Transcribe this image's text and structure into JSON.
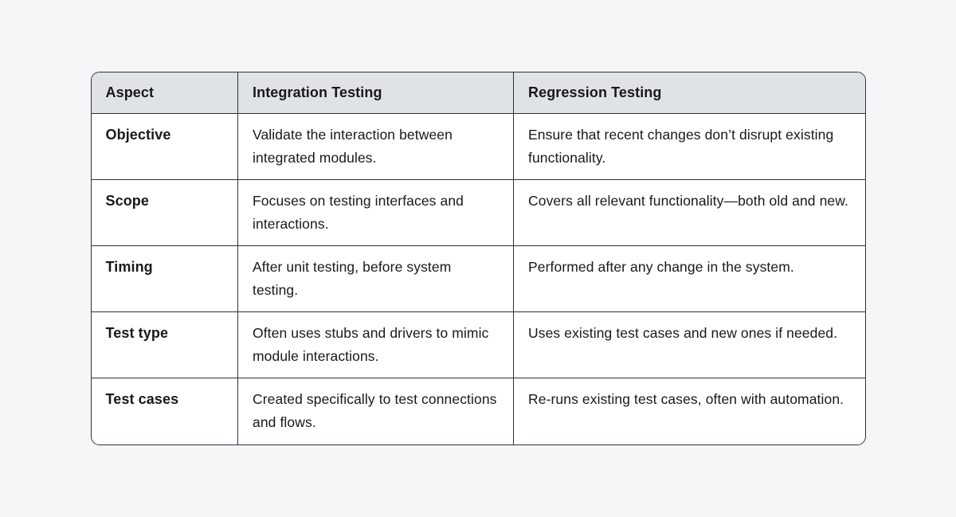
{
  "table": {
    "columns": [
      {
        "label": "Aspect"
      },
      {
        "label": "Integration Testing"
      },
      {
        "label": "Regression Testing"
      }
    ],
    "rows": [
      {
        "aspect": "Objective",
        "integration": "Validate the interaction between integrated modules.",
        "regression": "Ensure that recent changes don’t disrupt existing functionality."
      },
      {
        "aspect": "Scope",
        "integration": "Focuses on testing interfaces and interactions.",
        "regression": "Covers all relevant functionality—both old and new."
      },
      {
        "aspect": "Timing",
        "integration": "After unit testing, before system testing.",
        "regression": "Performed after any change in the system."
      },
      {
        "aspect": "Test type",
        "integration": "Often uses stubs and drivers to mimic module interactions.",
        "regression": "Uses existing test cases and new ones if needed."
      },
      {
        "aspect": "Test cases",
        "integration": "Created specifically to test connections and flows.",
        "regression": "Re-runs existing test cases, often with automation."
      }
    ]
  },
  "colors": {
    "page_background": "#f5f6f8",
    "header_background": "#e0e3e6",
    "cell_background": "#ffffff",
    "border": "#2e3338",
    "text": "#17191c"
  }
}
